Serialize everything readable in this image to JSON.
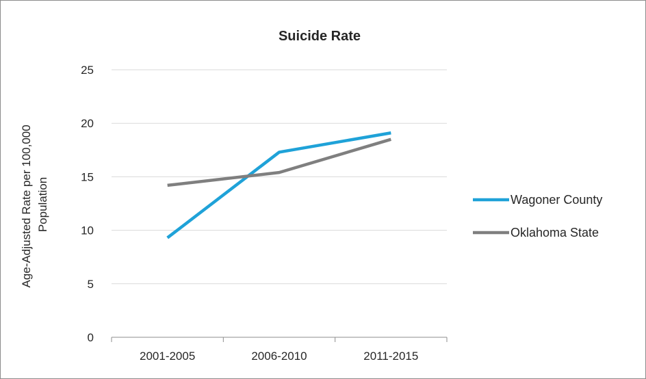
{
  "chart_data": {
    "type": "line",
    "title": "Suicide Rate",
    "ylabel_line1": "Age-Adjusted Rate per 100,000",
    "ylabel_line2": "Population",
    "xlabel": "",
    "categories": [
      "2001-2005",
      "2006-2010",
      "2011-2015"
    ],
    "ylim": [
      0,
      25
    ],
    "yticks": [
      0,
      5,
      10,
      15,
      20,
      25
    ],
    "grid": true,
    "legend_position": "right",
    "series": [
      {
        "name": "Wagoner County",
        "values": [
          9.3,
          17.3,
          19.1
        ],
        "color": "#1fa2d8"
      },
      {
        "name": "Oklahoma State",
        "values": [
          14.2,
          15.4,
          18.5
        ],
        "color": "#7f7f7f"
      }
    ]
  }
}
